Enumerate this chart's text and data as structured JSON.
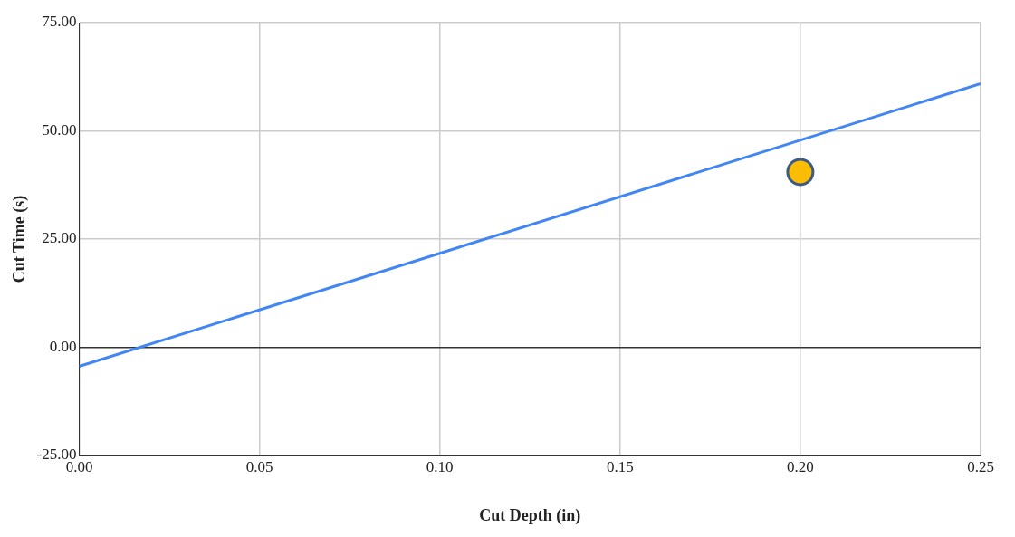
{
  "chart_data": {
    "type": "scatter",
    "xlabel": "Cut Depth (in)",
    "ylabel": "Cut Time (s)",
    "xlim": [
      0,
      0.25
    ],
    "ylim": [
      -25,
      75
    ],
    "xticks": [
      {
        "value": 0,
        "label": "0.00"
      },
      {
        "value": 0.05,
        "label": "0.05"
      },
      {
        "value": 0.1,
        "label": "0.10"
      },
      {
        "value": 0.15,
        "label": "0.15"
      },
      {
        "value": 0.2,
        "label": "0.20"
      },
      {
        "value": 0.25,
        "label": "0.25"
      }
    ],
    "yticks": [
      {
        "value": -25,
        "label": "-25.00"
      },
      {
        "value": 0,
        "label": "0.00"
      },
      {
        "value": 25,
        "label": "25.00"
      },
      {
        "value": 50,
        "label": "50.00"
      },
      {
        "value": 75,
        "label": "75.00"
      }
    ],
    "grid": true,
    "legend": false,
    "marker": "circle",
    "series": [
      {
        "type": "line",
        "marker": "none",
        "color": "#4285f4",
        "x": [
          0,
          0.25
        ],
        "values": [
          -4.4,
          60.9
        ]
      },
      {
        "color": "#fbbc04",
        "x": [
          0.2
        ],
        "values": [
          40.5
        ]
      }
    ]
  }
}
